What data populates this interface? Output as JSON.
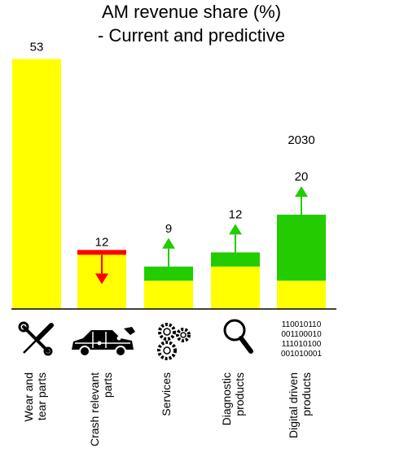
{
  "chart_data": {
    "type": "bar",
    "title_lines": [
      "AM revenue share (%)",
      "- Current and predictive"
    ],
    "categories": [
      "Wear and\ntear parts",
      "Crash relevant\nparts",
      "Services",
      "Diagnostic\nproducts",
      "Digital driven\nproducts"
    ],
    "current_values": [
      53,
      11,
      6,
      9,
      6
    ],
    "predicted_values": [
      53,
      12,
      9,
      12,
      20
    ],
    "data_labels": [
      "53",
      "12",
      "9",
      "12",
      "20"
    ],
    "trend": [
      "none",
      "down",
      "up",
      "up",
      "up"
    ],
    "annotation": "2030",
    "binary_lines": [
      "110010110",
      "001100010",
      "111010100",
      "001010001"
    ],
    "icons": [
      "wrench-screwdriver-icon",
      "car-puzzle-icon",
      "gears-icon",
      "magnifier-icon",
      "binary-code-icon"
    ],
    "colors": {
      "current": "#ffff00",
      "growth": "#22cc00",
      "decline": "#ff0000",
      "up_arrow": "#22cc00",
      "down_arrow": "#ff0000"
    },
    "ylim": [
      0,
      55
    ],
    "grid": false
  }
}
